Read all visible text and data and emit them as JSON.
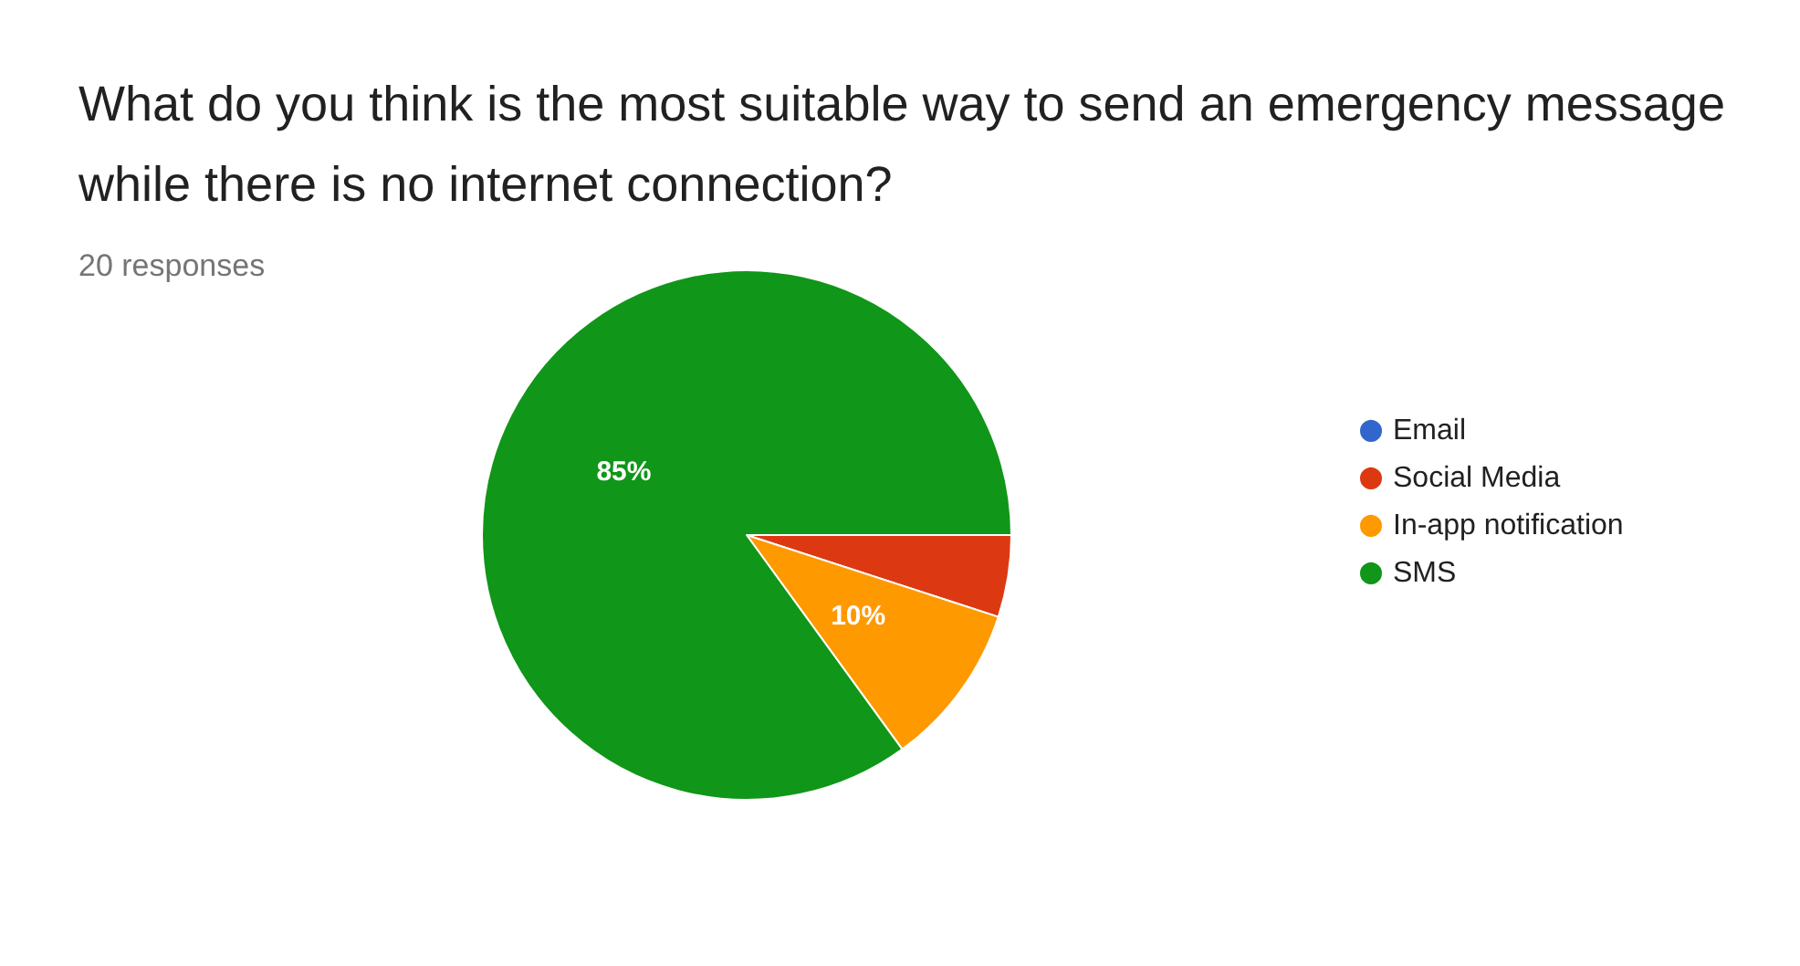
{
  "chart_data": {
    "type": "pie",
    "title": "What do you think is the most suitable way to send an emergency message while there is no internet connection?",
    "subtitle": "20 responses",
    "categories": [
      "Email",
      "Social Media",
      "In-app notification",
      "SMS"
    ],
    "values": [
      0,
      5,
      10,
      85
    ],
    "colors": [
      "#3366cc",
      "#dc3912",
      "#ff9900",
      "#109618"
    ],
    "value_labels": [
      null,
      null,
      "10%",
      "85%"
    ],
    "legend": "right"
  }
}
